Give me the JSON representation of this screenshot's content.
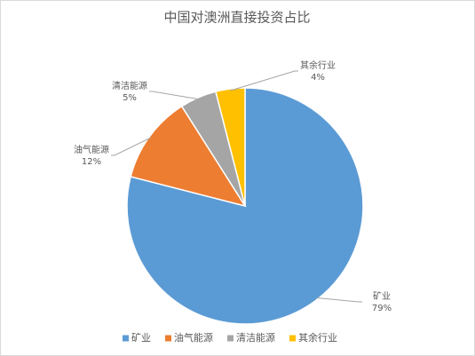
{
  "chart_data": {
    "type": "pie",
    "title": "中国对澳洲直接投资占比",
    "categories": [
      "矿业",
      "油气能源",
      "清洁能源",
      "其余行业"
    ],
    "values": [
      79,
      12,
      5,
      4
    ],
    "value_labels": [
      "79%",
      "12%",
      "5%",
      "4%"
    ],
    "colors": [
      "#5b9bd5",
      "#ed7d31",
      "#a5a5a5",
      "#ffc000"
    ],
    "legend": "bottom"
  }
}
